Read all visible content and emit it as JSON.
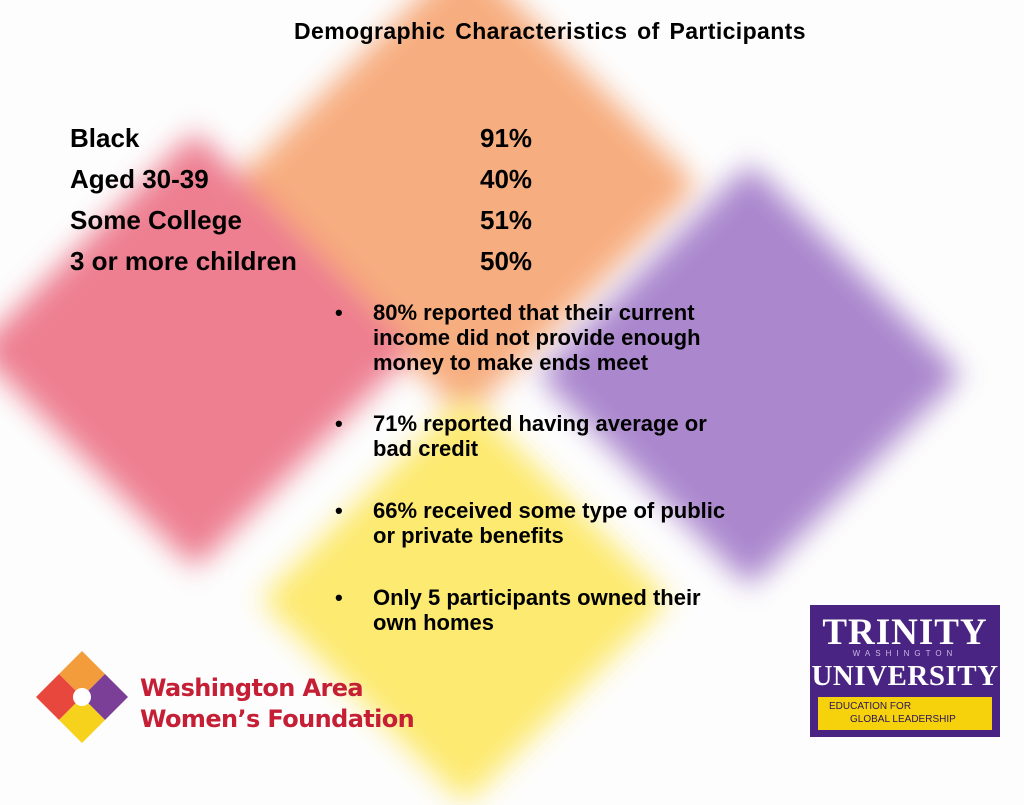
{
  "title": "Demographic  Characteristics of Participants",
  "stats": [
    {
      "label": "Black",
      "value": "91%"
    },
    {
      "label": "Aged 30-39",
      "value": "40%"
    },
    {
      "label": "Some College",
      "value": "51%"
    },
    {
      "label": "3 or more children",
      "value": "50%"
    }
  ],
  "bullet_glyph": "•",
  "bullets": [
    {
      "line1": "80% reported that their current",
      "line2": "income did not provide enough",
      "line3": "money to make ends meet"
    },
    {
      "line1": "71% reported having average or",
      "line2": "bad credit"
    },
    {
      "line1": "66% received some type of public",
      "line2": "or private benefits"
    },
    {
      "line1": "Only 5 participants owned their",
      "line2": "own homes"
    }
  ],
  "logos": {
    "waw": {
      "line1": "Washington Area",
      "line2": "Women’s Foundation",
      "colors": [
        "#e8473e",
        "#f39c3c",
        "#7b3f98",
        "#f6d21d"
      ]
    },
    "trinity": {
      "name": "TRINITY",
      "sub": "WASHINGTON",
      "univ": "UNIVERSITY",
      "tag1": "EDUCATION FOR",
      "tag2": "GLOBAL LEADERSHIP"
    }
  }
}
